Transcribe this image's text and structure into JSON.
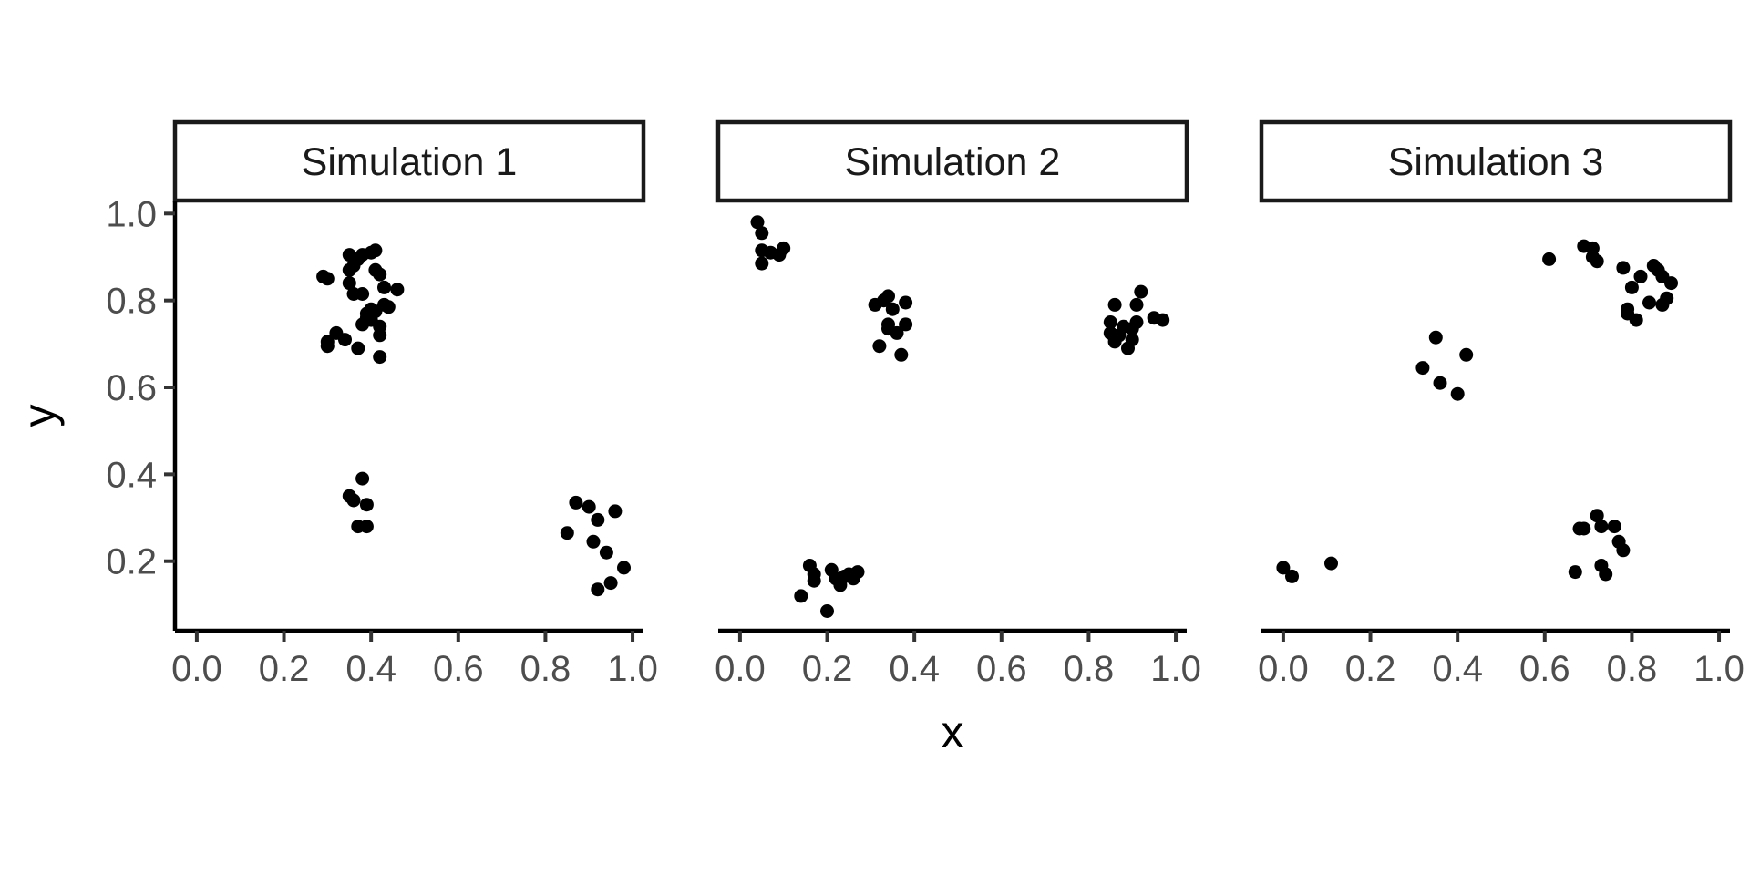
{
  "chart_data": {
    "type": "scatter",
    "xlabel": "x",
    "ylabel": "y",
    "xlim": [
      -0.05,
      1.025
    ],
    "ylim": [
      0.04,
      1.03
    ],
    "x_ticks": [
      "0.0",
      "0.2",
      "0.4",
      "0.6",
      "0.8",
      "1.0"
    ],
    "x_tick_values": [
      0,
      0.2,
      0.4,
      0.6,
      0.8,
      1.0
    ],
    "y_ticks": [
      "0.2",
      "0.4",
      "0.6",
      "0.8",
      "1.0"
    ],
    "y_tick_values": [
      0.2,
      0.4,
      0.6,
      0.8,
      1.0
    ],
    "grid": false,
    "point_color": "#000000",
    "panels": [
      {
        "title": "Simulation 1",
        "points": [
          [
            0.29,
            0.855
          ],
          [
            0.3,
            0.85
          ],
          [
            0.3,
            0.705
          ],
          [
            0.3,
            0.695
          ],
          [
            0.32,
            0.725
          ],
          [
            0.34,
            0.71
          ],
          [
            0.35,
            0.905
          ],
          [
            0.35,
            0.87
          ],
          [
            0.35,
            0.84
          ],
          [
            0.36,
            0.88
          ],
          [
            0.36,
            0.815
          ],
          [
            0.37,
            0.895
          ],
          [
            0.37,
            0.69
          ],
          [
            0.38,
            0.815
          ],
          [
            0.38,
            0.745
          ],
          [
            0.38,
            0.905
          ],
          [
            0.39,
            0.77
          ],
          [
            0.39,
            0.76
          ],
          [
            0.4,
            0.91
          ],
          [
            0.4,
            0.78
          ],
          [
            0.4,
            0.755
          ],
          [
            0.41,
            0.915
          ],
          [
            0.41,
            0.87
          ],
          [
            0.41,
            0.775
          ],
          [
            0.42,
            0.86
          ],
          [
            0.42,
            0.74
          ],
          [
            0.42,
            0.72
          ],
          [
            0.42,
            0.67
          ],
          [
            0.43,
            0.79
          ],
          [
            0.44,
            0.785
          ],
          [
            0.46,
            0.825
          ],
          [
            0.43,
            0.83
          ],
          [
            0.35,
            0.35
          ],
          [
            0.36,
            0.34
          ],
          [
            0.37,
            0.28
          ],
          [
            0.38,
            0.39
          ],
          [
            0.39,
            0.28
          ],
          [
            0.39,
            0.33
          ],
          [
            0.85,
            0.265
          ],
          [
            0.87,
            0.335
          ],
          [
            0.9,
            0.325
          ],
          [
            0.91,
            0.245
          ],
          [
            0.92,
            0.295
          ],
          [
            0.92,
            0.135
          ],
          [
            0.94,
            0.22
          ],
          [
            0.95,
            0.15
          ],
          [
            0.96,
            0.315
          ],
          [
            0.98,
            0.185
          ]
        ]
      },
      {
        "title": "Simulation 2",
        "points": [
          [
            0.04,
            0.98
          ],
          [
            0.05,
            0.955
          ],
          [
            0.05,
            0.915
          ],
          [
            0.05,
            0.885
          ],
          [
            0.07,
            0.91
          ],
          [
            0.09,
            0.905
          ],
          [
            0.1,
            0.92
          ],
          [
            0.31,
            0.79
          ],
          [
            0.32,
            0.695
          ],
          [
            0.33,
            0.8
          ],
          [
            0.34,
            0.81
          ],
          [
            0.34,
            0.745
          ],
          [
            0.34,
            0.735
          ],
          [
            0.35,
            0.78
          ],
          [
            0.36,
            0.725
          ],
          [
            0.37,
            0.675
          ],
          [
            0.38,
            0.795
          ],
          [
            0.38,
            0.745
          ],
          [
            0.14,
            0.12
          ],
          [
            0.16,
            0.19
          ],
          [
            0.17,
            0.17
          ],
          [
            0.17,
            0.155
          ],
          [
            0.2,
            0.085
          ],
          [
            0.21,
            0.18
          ],
          [
            0.22,
            0.16
          ],
          [
            0.23,
            0.145
          ],
          [
            0.24,
            0.165
          ],
          [
            0.25,
            0.17
          ],
          [
            0.26,
            0.16
          ],
          [
            0.27,
            0.175
          ],
          [
            0.85,
            0.75
          ],
          [
            0.85,
            0.725
          ],
          [
            0.86,
            0.79
          ],
          [
            0.86,
            0.705
          ],
          [
            0.87,
            0.72
          ],
          [
            0.88,
            0.74
          ],
          [
            0.89,
            0.69
          ],
          [
            0.9,
            0.735
          ],
          [
            0.9,
            0.71
          ],
          [
            0.91,
            0.79
          ],
          [
            0.91,
            0.75
          ],
          [
            0.92,
            0.82
          ],
          [
            0.95,
            0.76
          ],
          [
            0.97,
            0.755
          ]
        ]
      },
      {
        "title": "Simulation 3",
        "points": [
          [
            0.0,
            0.185
          ],
          [
            0.02,
            0.165
          ],
          [
            0.11,
            0.195
          ],
          [
            0.32,
            0.645
          ],
          [
            0.35,
            0.715
          ],
          [
            0.36,
            0.61
          ],
          [
            0.4,
            0.585
          ],
          [
            0.42,
            0.675
          ],
          [
            0.61,
            0.895
          ],
          [
            0.69,
            0.925
          ],
          [
            0.71,
            0.92
          ],
          [
            0.71,
            0.9
          ],
          [
            0.72,
            0.89
          ],
          [
            0.78,
            0.875
          ],
          [
            0.79,
            0.78
          ],
          [
            0.79,
            0.77
          ],
          [
            0.8,
            0.83
          ],
          [
            0.81,
            0.755
          ],
          [
            0.82,
            0.855
          ],
          [
            0.84,
            0.795
          ],
          [
            0.85,
            0.88
          ],
          [
            0.86,
            0.87
          ],
          [
            0.87,
            0.855
          ],
          [
            0.87,
            0.79
          ],
          [
            0.88,
            0.805
          ],
          [
            0.89,
            0.84
          ],
          [
            0.67,
            0.175
          ],
          [
            0.68,
            0.275
          ],
          [
            0.69,
            0.275
          ],
          [
            0.72,
            0.305
          ],
          [
            0.73,
            0.28
          ],
          [
            0.73,
            0.19
          ],
          [
            0.74,
            0.17
          ],
          [
            0.76,
            0.28
          ],
          [
            0.77,
            0.245
          ],
          [
            0.78,
            0.225
          ]
        ]
      }
    ]
  }
}
